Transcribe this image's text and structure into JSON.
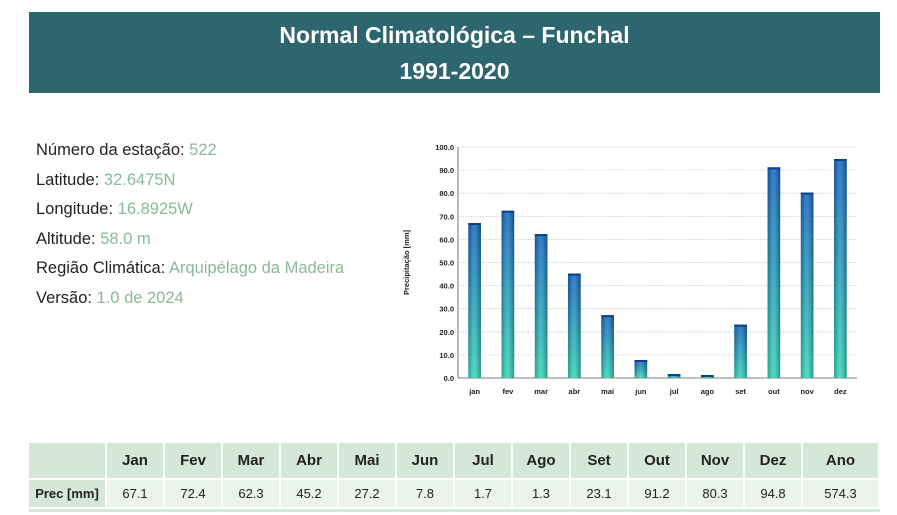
{
  "header": {
    "title": "Normal Climatológica – Funchal",
    "period": "1991-2020"
  },
  "info": [
    {
      "label": "Número da estação: ",
      "value": "522"
    },
    {
      "label": "Latitude: ",
      "value": "32.6475N"
    },
    {
      "label": "Longitude: ",
      "value": "16.8925W"
    },
    {
      "label": "Altitude: ",
      "value": "58.0 m"
    },
    {
      "label": "Região Climática: ",
      "value": "Arquipélago da Madeira"
    },
    {
      "label": "Versão: ",
      "value": "1.0 de 2024"
    }
  ],
  "chart_data": {
    "type": "bar",
    "categories": [
      "jan",
      "fev",
      "mar",
      "abr",
      "mai",
      "jun",
      "jul",
      "ago",
      "set",
      "out",
      "nov",
      "dez"
    ],
    "values": [
      67.1,
      72.4,
      62.3,
      45.2,
      27.2,
      7.8,
      1.7,
      1.3,
      23.1,
      91.2,
      80.3,
      94.8
    ],
    "ylabel": "Precipitação [mm]",
    "ylim": [
      0,
      100
    ],
    "yticks": [
      "0.0",
      "10.0",
      "20.0",
      "30.0",
      "40.0",
      "50.0",
      "60.0",
      "70.0",
      "80.0",
      "90.0",
      "100.0"
    ],
    "grid": true,
    "colors": {
      "bar_top": "#1565c0",
      "bar_bottom": "#35d6b8",
      "grid": "#9fb6d6"
    }
  },
  "table": {
    "headers": [
      "",
      "Jan",
      "Fev",
      "Mar",
      "Abr",
      "Mai",
      "Jun",
      "Jul",
      "Ago",
      "Set",
      "Out",
      "Nov",
      "Dez",
      "Ano"
    ],
    "row_label": "Prec [mm]",
    "values": [
      "67.1",
      "72.4",
      "62.3",
      "45.2",
      "27.2",
      "7.8",
      "1.7",
      "1.3",
      "23.1",
      "91.2",
      "80.3",
      "94.8",
      "574.3"
    ]
  }
}
